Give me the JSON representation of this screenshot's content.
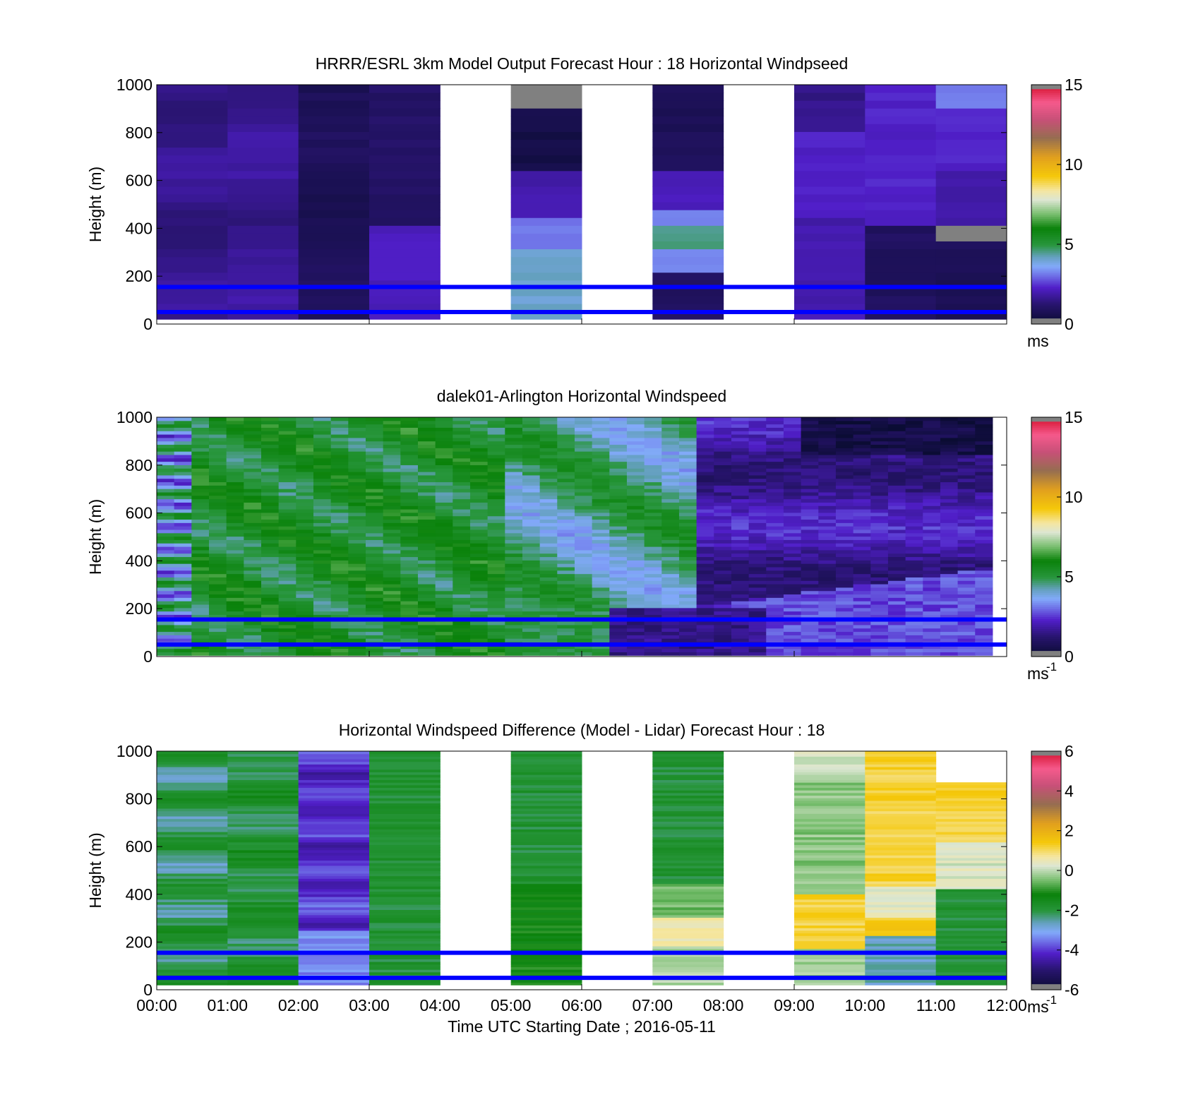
{
  "chart_data": [
    {
      "type": "heatmap",
      "title": "HRRR/ESRL 3km Model Output   Forecast Hour : 18 Horizontal Windpseed",
      "ylabel": "Height (m)",
      "ylim": [
        0,
        1000
      ],
      "yticks": [
        "0",
        "200",
        "400",
        "600",
        "800",
        "1000"
      ],
      "xlim_hours": [
        0,
        12
      ],
      "colorbar": {
        "min": 0,
        "max": 15,
        "ticks": [
          "0",
          "5",
          "10",
          "15"
        ],
        "unit": "ms",
        "unit_sup": ""
      },
      "reference_lines_m": [
        50,
        155
      ],
      "missing_columns": [
        4,
        6,
        8
      ],
      "cells": "model hourly columns (12 x ~30 levels), values 0-15 m/s"
    },
    {
      "type": "heatmap",
      "title": "dalek01-Arlington  Horizontal Windspeed",
      "ylabel": "Height (m)",
      "ylim": [
        0,
        1000
      ],
      "yticks": [
        "0",
        "200",
        "400",
        "600",
        "800",
        "1000"
      ],
      "xlim_hours": [
        0,
        12
      ],
      "colorbar": {
        "min": 0,
        "max": 15,
        "ticks": [
          "0",
          "5",
          "10",
          "15"
        ],
        "unit": "ms",
        "unit_sup": "-1"
      },
      "reference_lines_m": [
        50,
        155
      ],
      "cells": "lidar profiles every ~15 min, values 0-15 m/s"
    },
    {
      "type": "heatmap",
      "title": "Horizontal Windspeed Difference (Model - Lidar) Forecast Hour : 18",
      "ylabel": "Height (m)",
      "xlabel": "Time UTC  Starting Date ; 2016-05-11",
      "ylim": [
        0,
        1000
      ],
      "yticks": [
        "0",
        "200",
        "400",
        "600",
        "800",
        "1000"
      ],
      "xticks": [
        "00:00",
        "01:00",
        "02:00",
        "03:00",
        "04:00",
        "05:00",
        "06:00",
        "07:00",
        "08:00",
        "09:00",
        "10:00",
        "11:00",
        "12:00"
      ],
      "xlim_hours": [
        0,
        12
      ],
      "colorbar": {
        "min": -6,
        "max": 6,
        "ticks": [
          "-6",
          "-4",
          "-2",
          "0",
          "2",
          "4",
          "6"
        ],
        "unit": "ms",
        "unit_sup": "-1"
      },
      "reference_lines_m": [
        50,
        155
      ],
      "missing_columns": [
        4,
        6,
        8
      ],
      "cells": "hourly columns of model minus lidar, values -6 to 6 m/s"
    }
  ]
}
